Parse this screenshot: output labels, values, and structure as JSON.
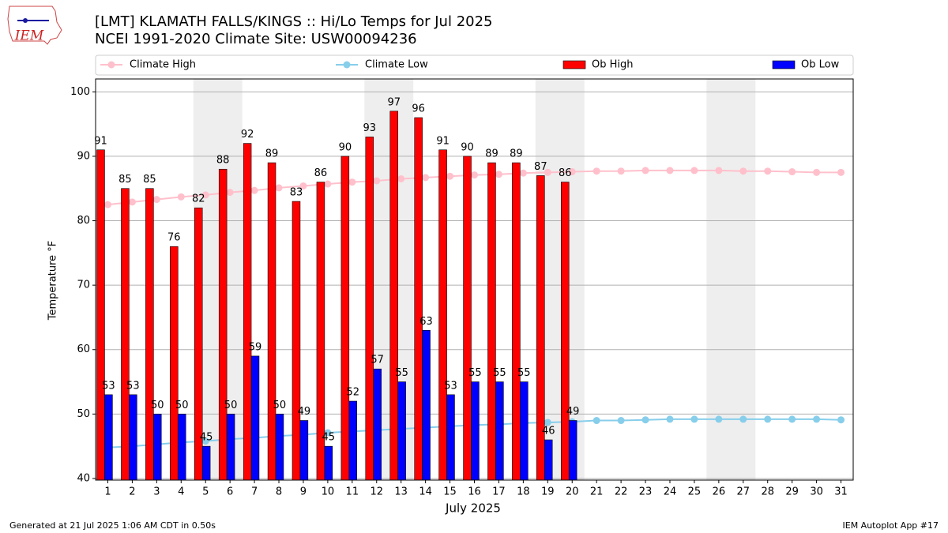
{
  "logo_text": "IEM",
  "footer_left": "Generated at 21 Jul 2025 1:06 AM CDT in 0.50s",
  "footer_right": "IEM Autoplot App #17",
  "chart_data": {
    "type": "bar",
    "title": "[LMT] KLAMATH FALLS/KINGS :: Hi/Lo Temps for Jul 2025",
    "subtitle": "NCEI 1991-2020 Climate Site: USW00094236",
    "xlabel": "July 2025",
    "ylabel": "Temperature °F",
    "categories": [
      "1",
      "2",
      "3",
      "4",
      "5",
      "6",
      "7",
      "8",
      "9",
      "10",
      "11",
      "12",
      "13",
      "14",
      "15",
      "16",
      "17",
      "18",
      "19",
      "20",
      "21",
      "22",
      "23",
      "24",
      "25",
      "26",
      "27",
      "28",
      "29",
      "30",
      "31"
    ],
    "series": [
      {
        "name": "Climate High",
        "type": "line",
        "color": "#ffc0cb",
        "values": [
          82.5,
          82.9,
          83.3,
          83.7,
          84.0,
          84.4,
          84.7,
          85.1,
          85.4,
          85.7,
          86.0,
          86.2,
          86.5,
          86.7,
          86.9,
          87.1,
          87.2,
          87.4,
          87.5,
          87.6,
          87.7,
          87.7,
          87.8,
          87.8,
          87.8,
          87.8,
          87.7,
          87.7,
          87.6,
          87.5,
          87.5
        ]
      },
      {
        "name": "Climate Low",
        "type": "line",
        "color": "#87ceeb",
        "values": [
          44.8,
          45.0,
          45.3,
          45.6,
          45.8,
          46.1,
          46.3,
          46.6,
          46.8,
          47.1,
          47.3,
          47.5,
          47.7,
          47.9,
          48.1,
          48.3,
          48.4,
          48.6,
          48.7,
          48.8,
          49.0,
          49.0,
          49.1,
          49.2,
          49.2,
          49.2,
          49.2,
          49.2,
          49.2,
          49.2,
          49.1
        ]
      },
      {
        "name": "Ob High",
        "type": "bar",
        "color": "#ff0000",
        "values": [
          91,
          85,
          85,
          76,
          82,
          88,
          92,
          89,
          83,
          86,
          90,
          93,
          97,
          96,
          91,
          90,
          89,
          89,
          87,
          86,
          null,
          null,
          null,
          null,
          null,
          null,
          null,
          null,
          null,
          null,
          null
        ]
      },
      {
        "name": "Ob Low",
        "type": "bar",
        "color": "#0000ff",
        "values": [
          53,
          53,
          50,
          50,
          45,
          50,
          59,
          50,
          49,
          45,
          52,
          57,
          55,
          63,
          53,
          55,
          55,
          55,
          46,
          49,
          null,
          null,
          null,
          null,
          null,
          null,
          null,
          null,
          null,
          null,
          null
        ]
      }
    ],
    "ylim": [
      39.75,
      102
    ],
    "yticks": [
      40,
      50,
      60,
      70,
      80,
      90,
      100
    ],
    "grid": true,
    "legend": "top"
  }
}
